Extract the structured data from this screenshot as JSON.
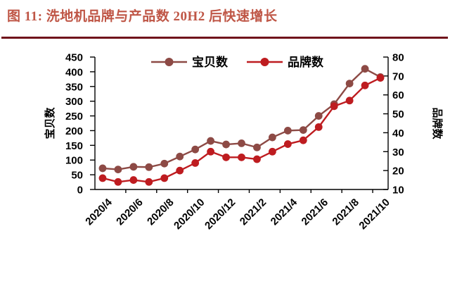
{
  "header": {
    "title": "图 11:  洗地机品牌与产品数 20H2 后快速增长",
    "title_color": "#bf5646",
    "divider_color": "#70141b"
  },
  "chart_data": {
    "type": "line",
    "categories": [
      "2020/4",
      "2020/5",
      "2020/6",
      "2020/7",
      "2020/8",
      "2020/9",
      "2020/10",
      "2020/11",
      "2020/12",
      "2021/1",
      "2021/2",
      "2021/3",
      "2021/4",
      "2021/5",
      "2021/6",
      "2021/7",
      "2021/8",
      "2021/9",
      "2021/10"
    ],
    "x_tick_labels_shown": [
      "2020/4",
      "2020/6",
      "2020/8",
      "2020/10",
      "2020/12",
      "2021/2",
      "2021/4",
      "2021/6",
      "2021/8",
      "2021/10"
    ],
    "series": [
      {
        "name": "宝贝数",
        "axis": "left",
        "color": "#8d4a45",
        "values": [
          72,
          68,
          77,
          76,
          88,
          112,
          136,
          165,
          153,
          157,
          143,
          177,
          200,
          202,
          250,
          290,
          360,
          410,
          382
        ]
      },
      {
        "name": "品牌数",
        "axis": "right",
        "color": "#be1c20",
        "values": [
          16,
          14,
          15,
          14,
          16,
          20,
          24,
          30,
          27,
          27,
          26,
          30,
          34,
          36,
          43,
          54,
          57,
          65,
          69
        ]
      }
    ],
    "left_axis": {
      "label": "宝贝数",
      "min": 0,
      "max": 450,
      "step": 50
    },
    "right_axis": {
      "label": "品牌数",
      "min": 10,
      "max": 80,
      "step": 10
    },
    "legend_position": "top-center",
    "grid": false,
    "axis_color": "#000000"
  }
}
